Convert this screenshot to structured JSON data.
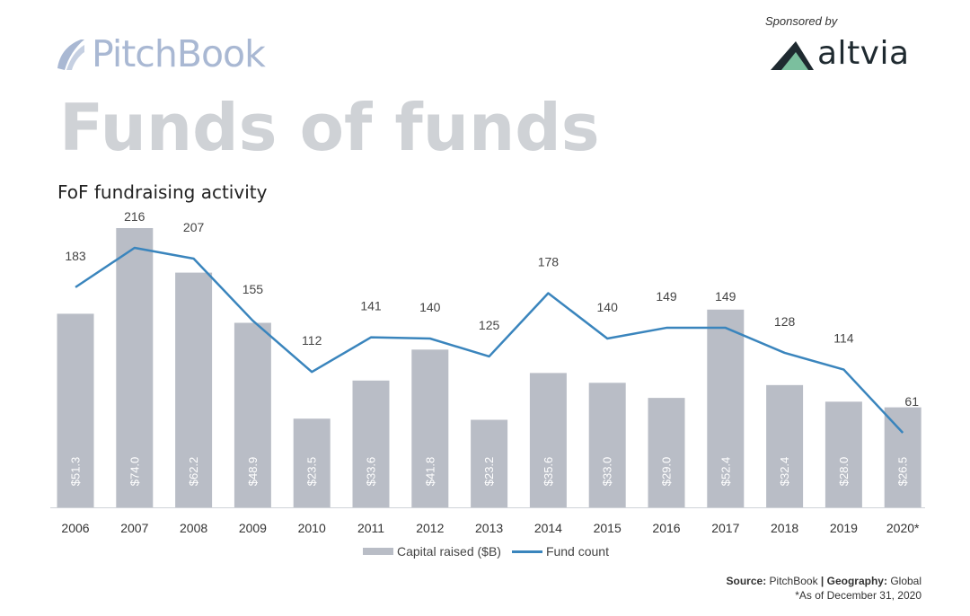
{
  "brand": {
    "name": "PitchBook"
  },
  "sponsor": {
    "label": "Sponsored by",
    "name": "altvia"
  },
  "page_title": "Funds of funds",
  "chart_title": "FoF fundraising activity",
  "source": {
    "source_label": "Source:",
    "source_value": "PitchBook",
    "separator": "|",
    "geo_label": "Geography:",
    "geo_value": "Global",
    "note": "*As of December 31, 2020"
  },
  "colors": {
    "bar": "#b9bdc6",
    "line": "#3a85bd",
    "title": "#cfd2d6",
    "brand": "#a9b8d3"
  },
  "chart_data": {
    "type": "bar",
    "categories": [
      "2006",
      "2007",
      "2008",
      "2009",
      "2010",
      "2011",
      "2012",
      "2013",
      "2014",
      "2015",
      "2016",
      "2017",
      "2018",
      "2019",
      "2020*"
    ],
    "series": [
      {
        "name": "Capital raised ($B)",
        "type": "bar",
        "values": [
          51.3,
          74.0,
          62.2,
          48.9,
          23.5,
          33.6,
          41.8,
          23.2,
          35.6,
          33.0,
          29.0,
          52.4,
          32.4,
          28.0,
          26.5
        ],
        "labels": [
          "$51.3",
          "$74.0",
          "$62.2",
          "$48.9",
          "$23.5",
          "$33.6",
          "$41.8",
          "$23.2",
          "$35.6",
          "$33.0",
          "$29.0",
          "$52.4",
          "$32.4",
          "$28.0",
          "$26.5"
        ]
      },
      {
        "name": "Fund count",
        "type": "line",
        "values": [
          183,
          216,
          207,
          155,
          112,
          141,
          140,
          125,
          178,
          140,
          149,
          149,
          128,
          114,
          61
        ]
      }
    ],
    "y_left_range": [
      0,
      75
    ],
    "y_right_range": [
      0,
      240
    ],
    "grid": false,
    "legend": "bottom"
  }
}
